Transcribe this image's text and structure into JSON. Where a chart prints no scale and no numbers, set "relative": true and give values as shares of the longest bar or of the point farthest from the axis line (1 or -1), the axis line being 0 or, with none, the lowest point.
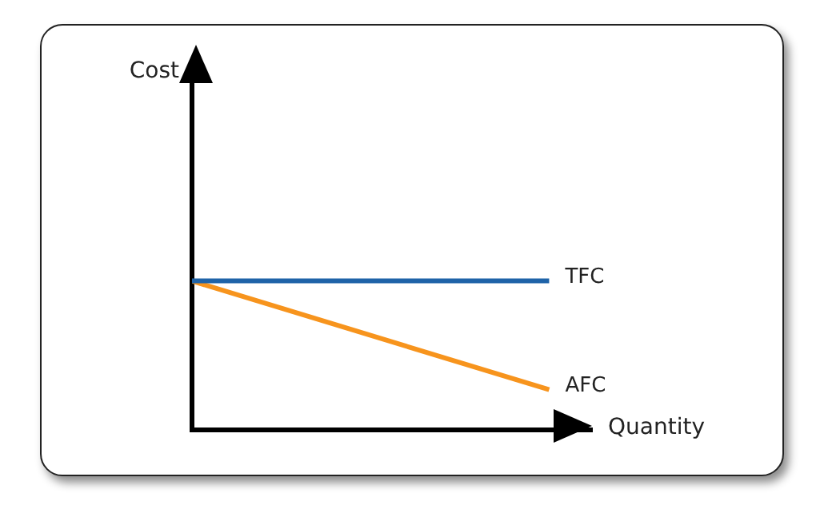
{
  "chart_data": {
    "type": "line",
    "relative": true,
    "xlabel": "Quantity",
    "annotations": [
      "Cost"
    ],
    "categories": [
      null,
      null
    ],
    "marker": "none",
    "line_style": "solid",
    "legend": false,
    "grid": false,
    "series": [
      {
        "name": "TFC",
        "color": "#1f63a8",
        "values": [
          1,
          1
        ]
      },
      {
        "name": "AFC",
        "color": "#f7941d",
        "values": [
          1,
          0.27
        ]
      }
    ]
  }
}
